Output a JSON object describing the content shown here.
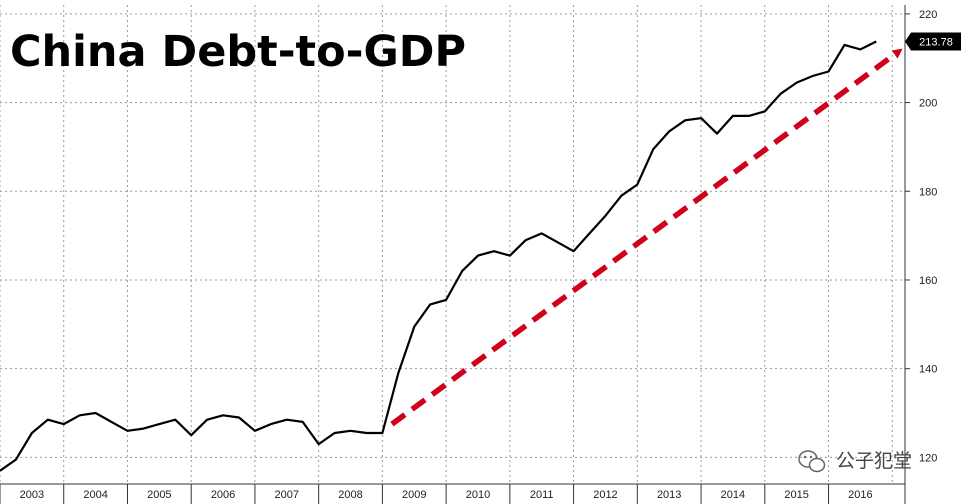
{
  "chart_data": {
    "type": "line",
    "title": "China Debt-to-GDP",
    "xlabel": "",
    "ylabel": "",
    "ylim": [
      114,
      222
    ],
    "y_ticks": [
      120,
      140,
      160,
      180,
      200,
      220
    ],
    "x_categories": [
      "2003",
      "2004",
      "2005",
      "2006",
      "2007",
      "2008",
      "2009",
      "2010",
      "2011",
      "2012",
      "2013",
      "2014",
      "2015",
      "2016"
    ],
    "grid": true,
    "line_color": "#000000",
    "last_value_label": "213.78",
    "series": [
      {
        "values": [
          {
            "x": 2003.0,
            "y": 117.0
          },
          {
            "x": 2003.25,
            "y": 119.5
          },
          {
            "x": 2003.5,
            "y": 125.5
          },
          {
            "x": 2003.75,
            "y": 128.5
          },
          {
            "x": 2004.0,
            "y": 127.5
          },
          {
            "x": 2004.25,
            "y": 129.5
          },
          {
            "x": 2004.5,
            "y": 130.0
          },
          {
            "x": 2004.75,
            "y": 128.0
          },
          {
            "x": 2005.0,
            "y": 126.0
          },
          {
            "x": 2005.25,
            "y": 126.5
          },
          {
            "x": 2005.5,
            "y": 127.5
          },
          {
            "x": 2005.75,
            "y": 128.5
          },
          {
            "x": 2006.0,
            "y": 125.0
          },
          {
            "x": 2006.25,
            "y": 128.5
          },
          {
            "x": 2006.5,
            "y": 129.5
          },
          {
            "x": 2006.75,
            "y": 129.0
          },
          {
            "x": 2007.0,
            "y": 126.0
          },
          {
            "x": 2007.25,
            "y": 127.5
          },
          {
            "x": 2007.5,
            "y": 128.5
          },
          {
            "x": 2007.75,
            "y": 128.0
          },
          {
            "x": 2008.0,
            "y": 123.0
          },
          {
            "x": 2008.25,
            "y": 125.5
          },
          {
            "x": 2008.5,
            "y": 126.0
          },
          {
            "x": 2008.75,
            "y": 125.5
          },
          {
            "x": 2009.0,
            "y": 125.5
          },
          {
            "x": 2009.25,
            "y": 139.0
          },
          {
            "x": 2009.5,
            "y": 149.5
          },
          {
            "x": 2009.75,
            "y": 154.5
          },
          {
            "x": 2010.0,
            "y": 155.5
          },
          {
            "x": 2010.25,
            "y": 162.0
          },
          {
            "x": 2010.5,
            "y": 165.5
          },
          {
            "x": 2010.75,
            "y": 166.5
          },
          {
            "x": 2011.0,
            "y": 165.5
          },
          {
            "x": 2011.25,
            "y": 169.0
          },
          {
            "x": 2011.5,
            "y": 170.5
          },
          {
            "x": 2011.75,
            "y": 168.5
          },
          {
            "x": 2012.0,
            "y": 166.5
          },
          {
            "x": 2012.25,
            "y": 170.5
          },
          {
            "x": 2012.5,
            "y": 174.5
          },
          {
            "x": 2012.75,
            "y": 179.0
          },
          {
            "x": 2013.0,
            "y": 181.5
          },
          {
            "x": 2013.25,
            "y": 189.5
          },
          {
            "x": 2013.5,
            "y": 193.5
          },
          {
            "x": 2013.75,
            "y": 196.0
          },
          {
            "x": 2014.0,
            "y": 196.5
          },
          {
            "x": 2014.25,
            "y": 193.0
          },
          {
            "x": 2014.5,
            "y": 197.0
          },
          {
            "x": 2014.75,
            "y": 197.0
          },
          {
            "x": 2015.0,
            "y": 198.0
          },
          {
            "x": 2015.25,
            "y": 202.0
          },
          {
            "x": 2015.5,
            "y": 204.5
          },
          {
            "x": 2015.75,
            "y": 206.0
          },
          {
            "x": 2016.0,
            "y": 207.0
          },
          {
            "x": 2016.25,
            "y": 213.0
          },
          {
            "x": 2016.5,
            "y": 212.0
          },
          {
            "x": 2016.75,
            "y": 213.78
          }
        ]
      }
    ],
    "annotations": [
      {
        "type": "arrow",
        "style": "dashed",
        "color": "#d0021b",
        "from": {
          "x": 2009.15,
          "y": 127.5
        },
        "to": {
          "x": 2017.1,
          "y": 211.5
        }
      }
    ]
  },
  "watermark": {
    "text": "公子犯堂",
    "icon": "wechat-icon"
  }
}
